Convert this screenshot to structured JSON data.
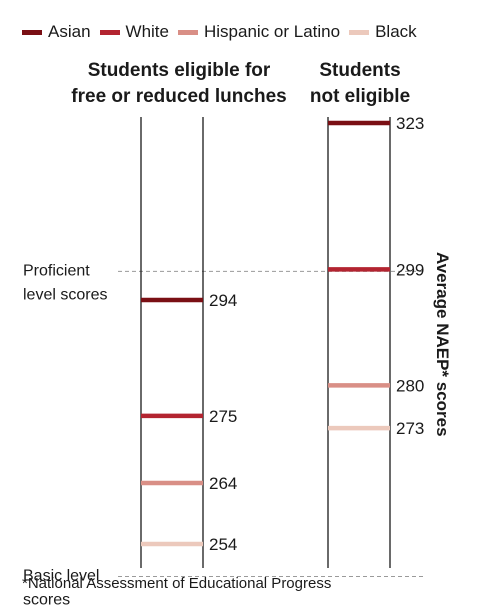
{
  "chart_data": {
    "type": "bar",
    "legend": [
      {
        "name": "Asian",
        "color": "#7a0f14"
      },
      {
        "name": "White",
        "color": "#b32430"
      },
      {
        "name": "Hispanic or Latino",
        "color": "#d98f86"
      },
      {
        "name": "Black",
        "color": "#ecc9bc"
      }
    ],
    "groups": [
      {
        "title_line1": "Students eligible for",
        "title_line2": "free or reduced lunches",
        "points": [
          {
            "series": "Asian",
            "value": 294
          },
          {
            "series": "White",
            "value": 275
          },
          {
            "series": "Hispanic or Latino",
            "value": 264
          },
          {
            "series": "Black",
            "value": 254
          }
        ]
      },
      {
        "title_line1": "Students",
        "title_line2": "not eligible",
        "points": [
          {
            "series": "Asian",
            "value": 323
          },
          {
            "series": "White",
            "value": 299
          },
          {
            "series": "Hispanic or Latino",
            "value": 280
          },
          {
            "series": "Black",
            "value": 273
          }
        ]
      }
    ],
    "reference_lines": [
      {
        "label_line1": "Proficient",
        "label_line2": "level scores",
        "value": 299
      },
      {
        "label_line1": "Basic level",
        "label_line2": "scores",
        "value": 249
      }
    ],
    "ylabel": "Average NAEP* scores",
    "ylim": [
      246,
      327
    ]
  },
  "footnote": "*National Assessment of Educational Progress"
}
